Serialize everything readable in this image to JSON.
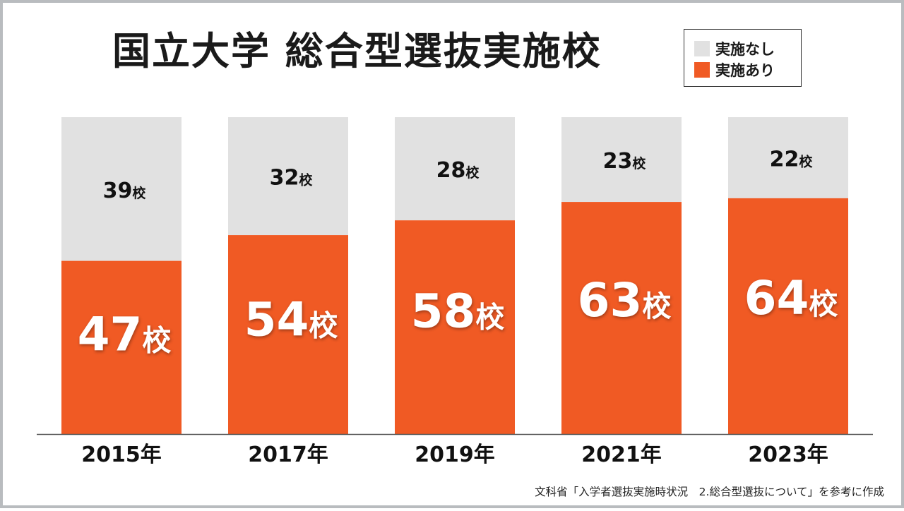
{
  "title": "国立大学 総合型選抜実施校",
  "legend": {
    "items": [
      {
        "label": "実施なし",
        "color": "#e1e1e1"
      },
      {
        "label": "実施あり",
        "color": "#f05a24"
      }
    ]
  },
  "source": "文科省「入学者選抜実施時状況　2.総合型選抜について」を参考に作成",
  "chart_data": {
    "type": "bar",
    "stacked": true,
    "title": "国立大学 総合型選抜実施校",
    "categories": [
      "2015年",
      "2017年",
      "2019年",
      "2021年",
      "2023年"
    ],
    "unit": "校",
    "series": [
      {
        "name": "実施あり",
        "color": "#f05a24",
        "values": [
          47,
          54,
          58,
          63,
          64
        ]
      },
      {
        "name": "実施なし",
        "color": "#e1e1e1",
        "values": [
          39,
          32,
          28,
          23,
          22
        ]
      }
    ],
    "ylim": [
      0,
      86
    ],
    "legend_position": "top-right",
    "grid": false
  }
}
